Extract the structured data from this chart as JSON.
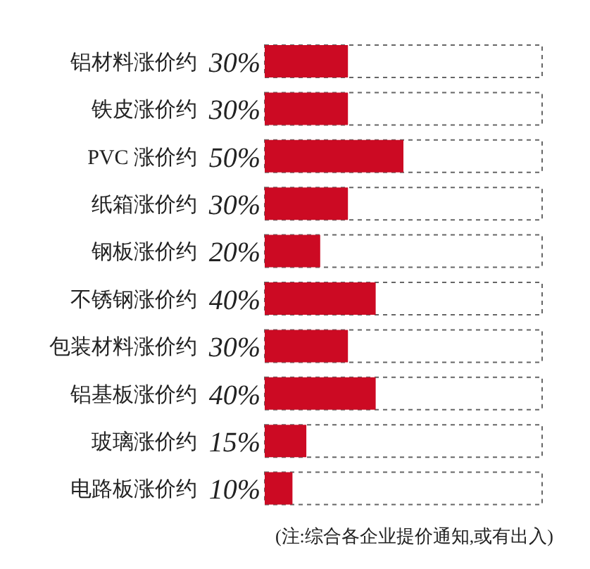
{
  "chart_data": {
    "type": "bar",
    "orientation": "horizontal",
    "categories": [
      "铝材料涨价约",
      "铁皮涨价约",
      "PVC 涨价约",
      "纸箱涨价约",
      "钢板涨价约",
      "不锈钢涨价约",
      "包装材料涨价约",
      "铝基板涨价约",
      "玻璃涨价约",
      "电路板涨价约"
    ],
    "values": [
      30,
      30,
      50,
      30,
      20,
      40,
      30,
      40,
      15,
      10
    ],
    "value_labels": [
      "30%",
      "30%",
      "50%",
      "30%",
      "20%",
      "40%",
      "30%",
      "40%",
      "15%",
      "10%"
    ],
    "color": "#cc0a23",
    "xlim": [
      0,
      100
    ],
    "tick_labels": "y",
    "annotations": [
      "(注:综合各企业提价通知,或有出入)"
    ]
  }
}
